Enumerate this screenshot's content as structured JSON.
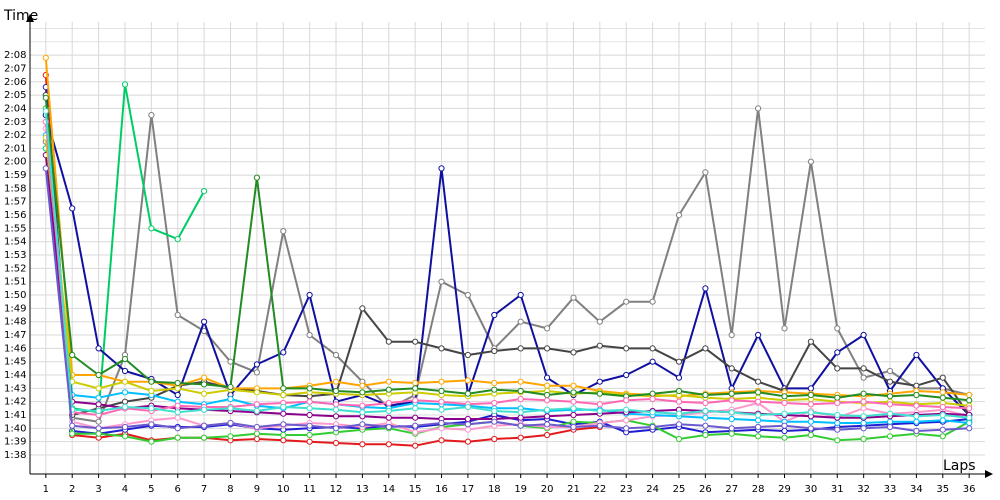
{
  "chart_data": {
    "type": "line",
    "ylabel": "Time",
    "xlabel": "Laps",
    "grid": true,
    "legend": "none",
    "xlim": [
      0.4,
      36.6
    ],
    "ylim_seconds": [
      6000,
      6470
    ],
    "x_ticks": [
      "1",
      "2",
      "3",
      "4",
      "5",
      "6",
      "7",
      "8",
      "9",
      "10",
      "11",
      "12",
      "13",
      "14",
      "15",
      "16",
      "17",
      "18",
      "19",
      "20",
      "21",
      "22",
      "23",
      "24",
      "25",
      "26",
      "27",
      "28",
      "29",
      "30",
      "31",
      "32",
      "33",
      "34",
      "35",
      "36"
    ],
    "y_ticks": [
      "1:38",
      "1:39",
      "1:40",
      "1:41",
      "1:42",
      "1:43",
      "1:44",
      "1:45",
      "1:46",
      "1:47",
      "1:48",
      "1:49",
      "1:50",
      "1:51",
      "1:52",
      "1:53",
      "1:54",
      "1:55",
      "1:56",
      "1:57",
      "1:58",
      "1:59",
      "2:00",
      "2:01",
      "2:02",
      "2:03",
      "2:04",
      "2:05",
      "2:06",
      "2:07",
      "2:08"
    ],
    "y_tick_seconds": [
      5880,
      5940,
      6000,
      6060,
      6120,
      6180,
      6240,
      6300,
      6360,
      6420,
      6480,
      6540,
      6600,
      6660,
      6720,
      6780,
      6840,
      6900,
      6960,
      7020,
      7080,
      7140,
      7200,
      7260,
      7320,
      7380,
      7440,
      7500,
      7560,
      7620,
      7680
    ],
    "y_axis_note": "y values are lap times in seconds",
    "series": [
      {
        "color": "#e31a1c",
        "values": [
          126.5,
          99.5,
          99.3,
          99.6,
          99.1,
          99.3,
          99.3,
          99.1,
          99.2,
          99.1,
          99.0,
          98.9,
          98.8,
          98.8,
          98.7,
          99.1,
          99.0,
          99.2,
          99.3,
          99.5,
          99.9,
          100.1,
          null,
          null,
          null,
          null,
          null,
          null,
          null,
          null,
          null,
          null,
          null,
          null,
          null,
          null
        ]
      },
      {
        "color": "#1f1fd0",
        "values": [
          125.6,
          99.8,
          99.6,
          99.9,
          100.2,
          100.1,
          100.1,
          100.3,
          100.0,
          99.9,
          100.0,
          100.1,
          100.0,
          100.2,
          100.1,
          100.3,
          100.5,
          101.0,
          100.6,
          100.7,
          100.3,
          100.5,
          99.7,
          99.9,
          100.1,
          99.7,
          99.8,
          99.9,
          99.8,
          99.9,
          100.1,
          100.2,
          100.3,
          100.4,
          100.5,
          100.7
        ]
      },
      {
        "color": "#33cc33",
        "values": [
          124.0,
          99.6,
          99.6,
          99.4,
          99.0,
          99.3,
          99.3,
          99.4,
          99.6,
          99.5,
          99.5,
          99.7,
          99.9,
          100.0,
          99.6,
          100.1,
          100.3,
          100.5,
          100.2,
          100.0,
          100.5,
          100.4,
          100.6,
          100.2,
          99.2,
          99.5,
          99.6,
          99.4,
          99.3,
          99.5,
          99.1,
          99.2,
          99.4,
          99.6,
          99.4,
          100.5
        ]
      },
      {
        "color": "#ff99cc",
        "values": [
          122.5,
          100.5,
          100.0,
          100.3,
          100.6,
          100.8,
          100.2,
          100.4,
          100.0,
          100.2,
          100.4,
          100.3,
          100.1,
          100.4,
          99.7,
          100.0,
          99.9,
          100.2,
          100.3,
          100.1,
          100.1,
          100.4,
          100.6,
          100.9,
          101.0,
          101.2,
          101.4,
          101.9,
          100.5,
          101.3,
          100.8,
          101.5,
          101.1,
          101.2,
          101.4,
          100.9
        ]
      },
      {
        "color": "#808080",
        "values": [
          121.5,
          100.8,
          100.5,
          105.5,
          123.5,
          108.5,
          107.3,
          105.0,
          104.2,
          114.8,
          107.0,
          105.5,
          103.5,
          101.5,
          102.5,
          111.0,
          110.0,
          106.0,
          108.0,
          107.5,
          109.8,
          108.0,
          109.5,
          109.5,
          116.0,
          119.2,
          107.0,
          124.0,
          107.5,
          120.0,
          107.5,
          103.8,
          104.3,
          103.0,
          103.0,
          102.5
        ]
      },
      {
        "color": "#00cc66",
        "values": [
          121.0,
          101.5,
          101.2,
          125.8,
          115.0,
          114.2,
          117.8,
          null,
          null,
          null,
          null,
          null,
          null,
          null,
          null,
          null,
          null,
          null,
          null,
          null,
          null,
          null,
          null,
          null,
          null,
          null,
          null,
          null,
          null,
          null,
          null,
          null,
          null,
          null,
          null,
          null
        ]
      },
      {
        "color": "#1010a0",
        "values": [
          123.5,
          116.5,
          106.0,
          104.3,
          103.7,
          102.5,
          108.0,
          102.5,
          104.8,
          105.7,
          110.0,
          102.0,
          102.5,
          101.7,
          102.0,
          119.5,
          102.5,
          108.5,
          110.0,
          103.8,
          102.5,
          103.5,
          104.0,
          105.0,
          103.8,
          110.5,
          103.0,
          107.0,
          103.0,
          103.0,
          105.7,
          107.0,
          102.8,
          105.5,
          103.0,
          101.0
        ]
      },
      {
        "color": "#444444",
        "values": [
          125.0,
          101.0,
          101.5,
          102.0,
          102.3,
          103.2,
          103.5,
          103.0,
          102.8,
          102.5,
          102.4,
          102.6,
          109.0,
          106.5,
          106.5,
          106.0,
          105.5,
          105.8,
          106.0,
          106.0,
          105.7,
          106.2,
          106.0,
          106.0,
          105.0,
          106.0,
          104.5,
          103.5,
          102.8,
          106.5,
          104.5,
          104.5,
          103.5,
          103.2,
          103.8,
          101.0
        ]
      },
      {
        "color": "#ffa500",
        "values": [
          127.8,
          104.0,
          104.0,
          103.5,
          103.5,
          103.2,
          103.8,
          103.0,
          103.0,
          103.0,
          103.2,
          103.5,
          103.2,
          103.5,
          103.4,
          103.5,
          103.6,
          103.4,
          103.5,
          103.2,
          103.2,
          102.8,
          102.6,
          102.5,
          102.4,
          102.6,
          102.7,
          102.8,
          102.7,
          102.6,
          102.5,
          102.4,
          102.6,
          102.8,
          102.7,
          102.5
        ]
      },
      {
        "color": "#00bfff",
        "values": [
          122.0,
          102.5,
          102.3,
          102.7,
          102.5,
          102.0,
          101.8,
          102.2,
          101.7,
          101.5,
          102.0,
          101.8,
          101.6,
          101.5,
          101.9,
          101.8,
          101.7,
          101.5,
          101.5,
          101.3,
          101.4,
          101.4,
          101.1,
          101.0,
          100.9,
          100.8,
          100.7,
          100.6,
          100.5,
          100.5,
          100.4,
          100.4,
          100.5,
          100.5,
          100.6,
          100.4
        ]
      },
      {
        "color": "#8b008b",
        "values": [
          120.5,
          102.0,
          101.8,
          101.5,
          101.7,
          101.5,
          101.4,
          101.3,
          101.2,
          101.1,
          101.0,
          100.9,
          100.9,
          100.8,
          100.8,
          100.7,
          100.7,
          100.7,
          100.8,
          100.9,
          101.0,
          101.1,
          101.2,
          101.3,
          101.4,
          101.3,
          101.2,
          101.1,
          101.0,
          100.9,
          100.8,
          100.8,
          100.9,
          101.0,
          101.1,
          101.0
        ]
      },
      {
        "color": "#cccc00",
        "values": [
          121.8,
          103.5,
          103.0,
          103.5,
          102.8,
          103.0,
          102.6,
          102.9,
          102.7,
          102.5,
          102.7,
          102.6,
          102.5,
          102.6,
          102.7,
          102.5,
          102.4,
          102.6,
          102.7,
          102.8,
          102.6,
          102.7,
          102.5,
          102.4,
          102.5,
          102.3,
          102.2,
          102.3,
          102.1,
          102.2,
          102.0,
          101.9,
          102.0,
          101.8,
          101.9,
          101.7
        ]
      },
      {
        "color": "#228b22",
        "values": [
          124.8,
          105.5,
          104.0,
          105.2,
          103.5,
          103.4,
          103.3,
          103.1,
          118.8,
          103.0,
          103.0,
          102.8,
          102.7,
          102.9,
          103.0,
          102.8,
          102.6,
          102.9,
          102.8,
          102.5,
          102.7,
          102.6,
          102.4,
          102.6,
          102.8,
          102.5,
          102.6,
          102.7,
          102.4,
          102.5,
          102.3,
          102.6,
          102.4,
          102.5,
          102.3,
          102.1
        ]
      },
      {
        "color": "#ff69b4",
        "values": [
          123.0,
          101.2,
          101.0,
          101.5,
          101.3,
          101.7,
          101.6,
          101.6,
          101.8,
          101.9,
          102.0,
          101.8,
          101.7,
          101.9,
          102.1,
          102.0,
          101.8,
          101.9,
          102.2,
          102.1,
          102.0,
          101.8,
          102.1,
          102.2,
          102.0,
          101.9,
          102.1,
          102.0,
          101.9,
          101.8,
          101.9,
          102.0,
          101.8,
          101.7,
          101.6,
          101.5
        ]
      },
      {
        "color": "#40e0d0",
        "values": [
          123.8,
          101.4,
          101.3,
          101.6,
          101.5,
          101.2,
          101.4,
          101.5,
          101.3,
          101.6,
          101.5,
          101.4,
          101.2,
          101.3,
          101.5,
          101.4,
          101.6,
          101.3,
          101.2,
          101.4,
          101.5,
          101.3,
          101.4,
          101.2,
          101.1,
          101.3,
          101.2,
          101.0,
          101.1,
          101.2,
          101.0,
          100.9,
          101.1,
          100.9,
          101.0,
          100.8
        ]
      },
      {
        "color": "#6a5acd",
        "values": [
          119.5,
          100.2,
          100.0,
          100.1,
          100.3,
          100.0,
          100.2,
          100.4,
          100.1,
          100.3,
          100.2,
          100.0,
          100.3,
          100.1,
          100.2,
          100.4,
          100.3,
          100.5,
          100.2,
          100.3,
          100.1,
          100.2,
          100.0,
          100.1,
          100.3,
          100.2,
          100.0,
          100.1,
          100.2,
          100.0,
          99.9,
          100.0,
          100.1,
          99.8,
          99.9,
          100.0
        ]
      }
    ]
  }
}
